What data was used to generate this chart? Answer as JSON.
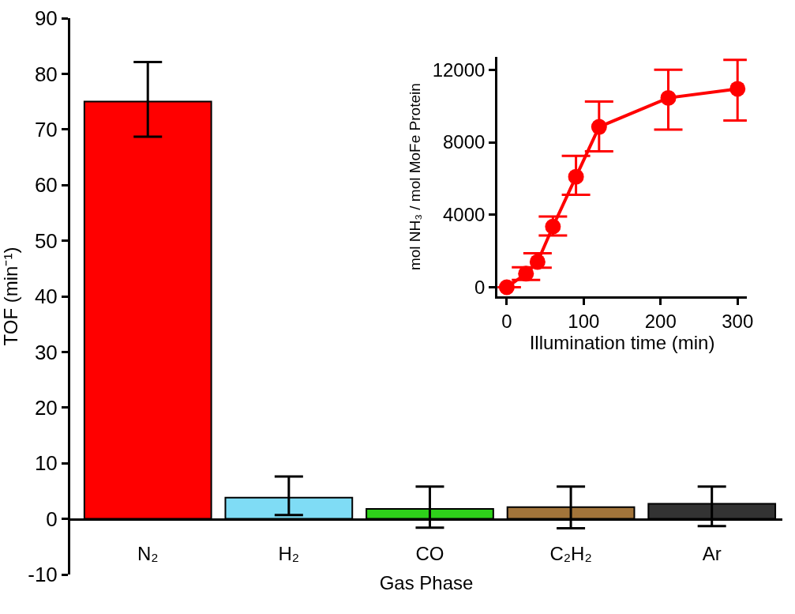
{
  "chart_data": [
    {
      "type": "bar",
      "xlabel": "Gas Phase",
      "ylabel": "TOF (min⁻¹)",
      "categories": [
        "N₂",
        "H₂",
        "CO",
        "C₂H₂",
        "Ar"
      ],
      "values": [
        75,
        3.8,
        1.8,
        2.1,
        2.7
      ],
      "colors": [
        "#ff0000",
        "#7fdcf5",
        "#2ed11a",
        "#a2743a",
        "#333333"
      ],
      "errors": [
        [
          68.7,
          82.1
        ],
        [
          0.7,
          7.6
        ],
        [
          -1.6,
          5.8
        ],
        [
          -1.7,
          5.8
        ],
        [
          -1.3,
          5.8
        ]
      ],
      "ylim": [
        -10,
        90
      ],
      "yticks": [
        -10,
        0,
        10,
        20,
        30,
        40,
        50,
        60,
        70,
        80,
        90
      ]
    },
    {
      "type": "line",
      "xlabel": "Illumination time (min)",
      "ylabel": "mol NH₃ / mol MoFe Protein",
      "x": [
        0,
        25,
        40,
        60,
        90,
        120,
        210,
        300
      ],
      "series": [
        {
          "color": "#ff0000",
          "values": [
            0,
            750,
            1400,
            3350,
            6100,
            8850,
            10450,
            10950
          ],
          "errors": [
            null,
            [
              410,
              1100
            ],
            [
              1080,
              1880
            ],
            [
              2860,
              3900
            ],
            [
              5100,
              7250
            ],
            [
              7500,
              10250
            ],
            [
              8700,
              12000
            ],
            [
              9200,
              12550
            ]
          ]
        }
      ],
      "xlim": [
        -12,
        312
      ],
      "xticks": [
        0,
        100,
        200,
        300
      ],
      "ylim": [
        -500,
        12700
      ],
      "yticks": [
        0,
        4000,
        8000,
        12000
      ],
      "marker": "circle",
      "line_style": "solid"
    }
  ]
}
